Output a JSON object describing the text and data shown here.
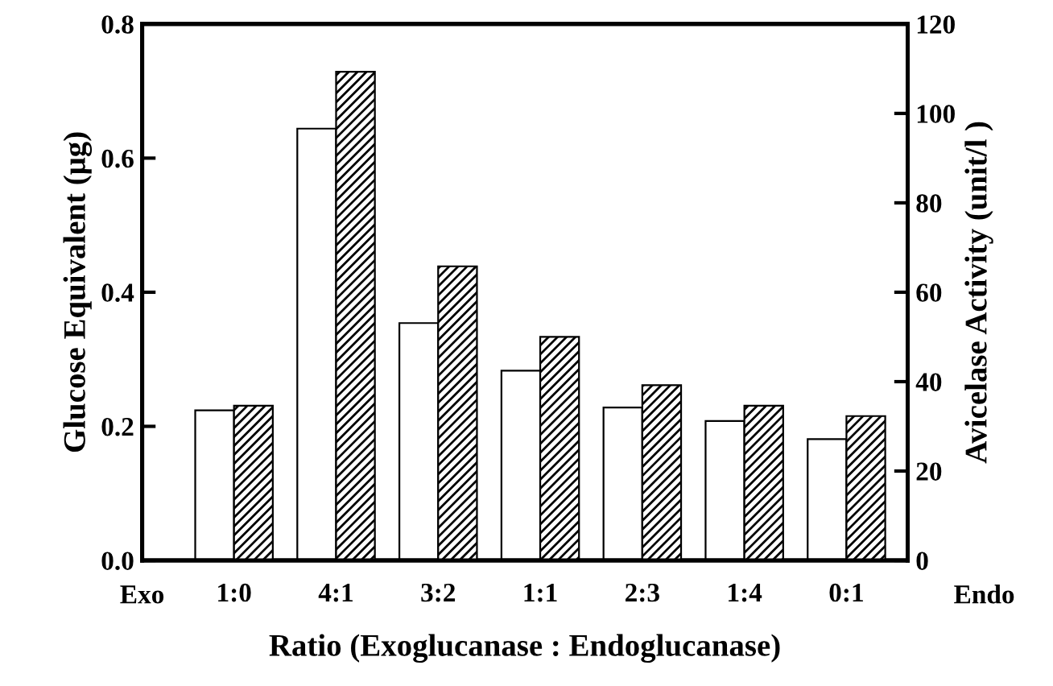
{
  "chart_data": {
    "type": "bar",
    "xlabel": "Ratio (Exoglucanase : Endoglucanase)",
    "ylabel": "Glucose Equivalent (μg)",
    "y2label": "Avicelase Activity (unit/l )",
    "categories": [
      "1:0",
      "4:1",
      "3:2",
      "1:1",
      "2:3",
      "1:4",
      "0:1"
    ],
    "series": [
      {
        "color": "#ffffff",
        "values": [
          0.224,
          0.644,
          0.354,
          0.283,
          0.228,
          0.208,
          0.181
        ]
      },
      {
        "color": "#000000",
        "axis": "y2",
        "values": [
          34.6,
          109.3,
          65.8,
          50,
          39.2,
          34.6,
          32.3
        ]
      }
    ],
    "ylim": [
      0,
      0.8
    ],
    "yticks": [
      {
        "value": 0,
        "label": "0.0"
      },
      {
        "value": 0.2,
        "label": "0.2"
      },
      {
        "value": 0.4,
        "label": "0.4"
      },
      {
        "value": 0.6,
        "label": "0.6"
      },
      {
        "value": 0.8,
        "label": "0.8"
      }
    ],
    "y2lim": [
      0,
      120
    ],
    "y2ticks": [
      0,
      20,
      40,
      60,
      80,
      100,
      120
    ],
    "annotations": [
      "Exo",
      "Endo"
    ],
    "grid": false,
    "legend": false
  }
}
